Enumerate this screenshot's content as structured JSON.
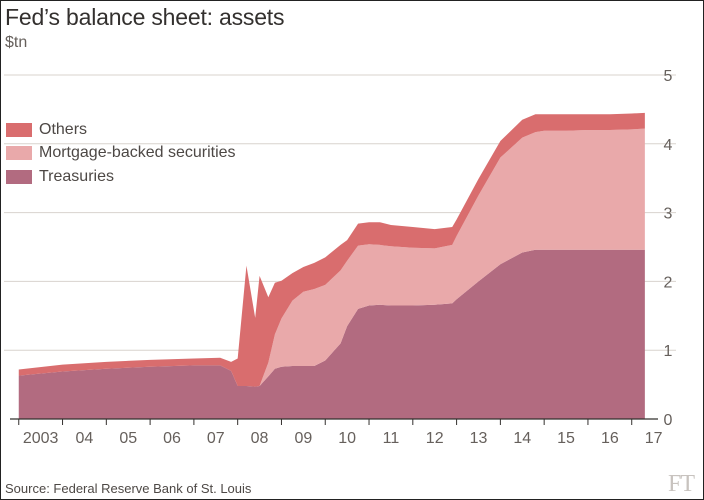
{
  "title": "Fed’s balance sheet: assets",
  "unit_label": "$tn",
  "source": "Source: Federal Reserve Bank of St. Louis",
  "logo_text": "FT",
  "colors": {
    "treasuries": "#b26b80",
    "mbs": "#e9a9aa",
    "others": "#d96d6e",
    "grid": "#d8d3ce",
    "axis": "#33302e",
    "tick_text": "#66605c"
  },
  "legend": [
    {
      "label": "Others",
      "color": "#d96d6e"
    },
    {
      "label": "Mortgage-backed securities",
      "color": "#e9a9aa"
    },
    {
      "label": "Treasuries",
      "color": "#b26b80"
    }
  ],
  "chart_data": {
    "type": "area",
    "stacked": true,
    "x_ticks": [
      {
        "label": "2003",
        "value": 2003
      },
      {
        "label": "04",
        "value": 2004
      },
      {
        "label": "05",
        "value": 2005
      },
      {
        "label": "06",
        "value": 2006
      },
      {
        "label": "07",
        "value": 2007
      },
      {
        "label": "08",
        "value": 2008
      },
      {
        "label": "09",
        "value": 2009
      },
      {
        "label": "10",
        "value": 2010
      },
      {
        "label": "11",
        "value": 2011
      },
      {
        "label": "12",
        "value": 2012
      },
      {
        "label": "13",
        "value": 2013
      },
      {
        "label": "14",
        "value": 2014
      },
      {
        "label": "15",
        "value": 2015
      },
      {
        "label": "16",
        "value": 2016
      },
      {
        "label": "17",
        "value": 2017
      }
    ],
    "xlim": [
      2002.8,
      2017.6
    ],
    "ylim": [
      0,
      5
    ],
    "y_ticks": [
      0,
      1,
      2,
      3,
      4,
      5
    ],
    "y_axis_side": "right",
    "grid": true,
    "legend_position": "top-left",
    "x": [
      2003.0,
      2004.0,
      2005.0,
      2006.0,
      2007.0,
      2007.6,
      2007.85,
      2008.0,
      2008.2,
      2008.4,
      2008.5,
      2008.7,
      2008.85,
      2009.0,
      2009.25,
      2009.5,
      2009.75,
      2010.0,
      2010.35,
      2010.5,
      2010.75,
      2011.0,
      2011.25,
      2011.5,
      2012.0,
      2012.5,
      2012.9,
      2013.0,
      2013.5,
      2014.0,
      2014.5,
      2014.8,
      2015.0,
      2015.5,
      2016.0,
      2016.5,
      2017.0,
      2017.3
    ],
    "series": [
      {
        "name": "Treasuries",
        "values": [
          0.63,
          0.69,
          0.73,
          0.76,
          0.78,
          0.78,
          0.7,
          0.48,
          0.48,
          0.47,
          0.48,
          0.62,
          0.73,
          0.76,
          0.77,
          0.77,
          0.77,
          0.85,
          1.1,
          1.35,
          1.6,
          1.65,
          1.66,
          1.65,
          1.65,
          1.66,
          1.68,
          1.74,
          2.0,
          2.25,
          2.42,
          2.46,
          2.46,
          2.46,
          2.46,
          2.46,
          2.46,
          2.46
        ]
      },
      {
        "name": "Mortgage-backed securities",
        "values": [
          0,
          0,
          0,
          0,
          0,
          0,
          0,
          0,
          0,
          0,
          0,
          0.2,
          0.5,
          0.7,
          0.95,
          1.08,
          1.12,
          1.1,
          1.06,
          0.95,
          0.92,
          0.89,
          0.87,
          0.86,
          0.84,
          0.82,
          0.85,
          0.92,
          1.25,
          1.55,
          1.67,
          1.71,
          1.73,
          1.73,
          1.74,
          1.74,
          1.75,
          1.76
        ]
      },
      {
        "name": "Others",
        "values": [
          0.09,
          0.1,
          0.1,
          0.1,
          0.1,
          0.11,
          0.13,
          0.4,
          1.75,
          1.0,
          1.6,
          0.95,
          0.75,
          0.55,
          0.4,
          0.36,
          0.38,
          0.4,
          0.37,
          0.3,
          0.32,
          0.32,
          0.33,
          0.31,
          0.3,
          0.28,
          0.26,
          0.24,
          0.24,
          0.24,
          0.26,
          0.26,
          0.24,
          0.24,
          0.23,
          0.23,
          0.23,
          0.23
        ]
      }
    ]
  }
}
